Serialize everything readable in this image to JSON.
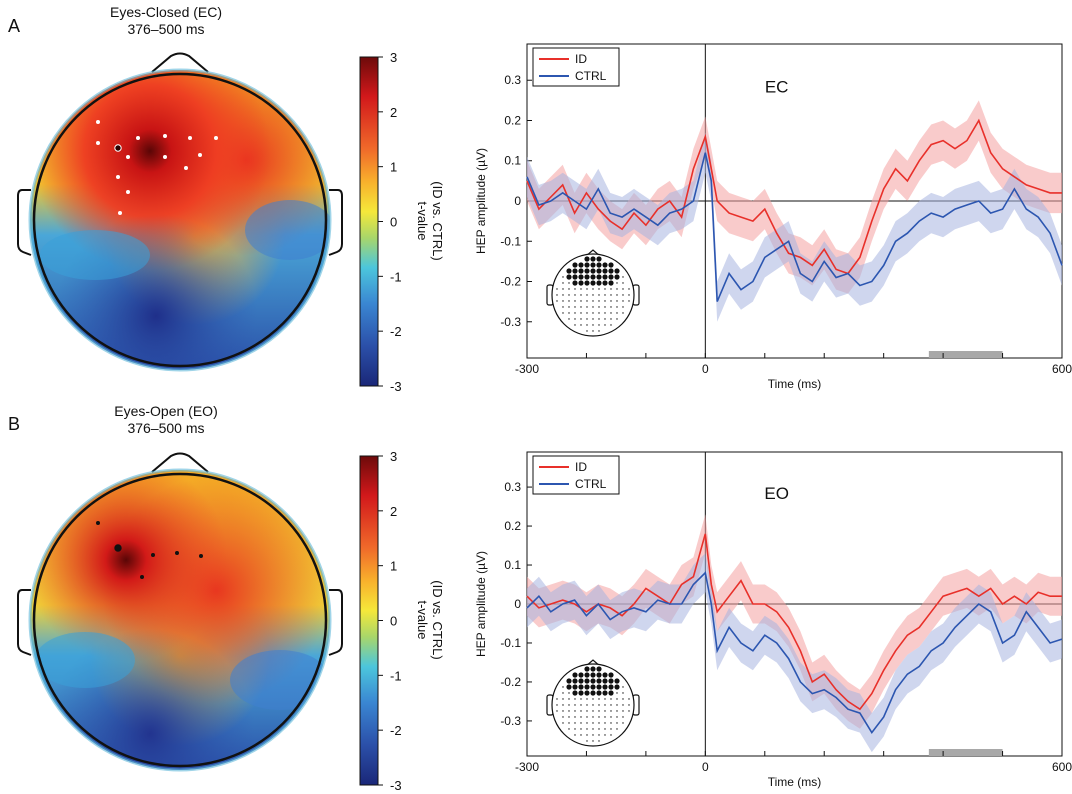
{
  "panels": [
    {
      "letter": "A",
      "topo": {
        "title": "Eyes-Closed (EC)",
        "window": "376–500 ms",
        "electrode_color": "#ffffff",
        "highlight_color": "#2a0000"
      },
      "colorbar": {
        "ticks": [
          "3",
          "2",
          "1",
          "0",
          "-1",
          "-2",
          "-3"
        ],
        "label_line1": "t-value",
        "label_line2": "(ID vs. CTRL)",
        "colors": [
          "#7b0c0c",
          "#d7191c",
          "#f46d43",
          "#fdae61",
          "#ffff40",
          "#a6d96a",
          "#5ac8d0",
          "#3d8bd6",
          "#2b4fa8",
          "#1c2a80"
        ]
      },
      "chart_data": {
        "type": "line",
        "condition_label": "EC",
        "xlabel": "Time (ms)",
        "ylabel": "HEP amplitude (µV)",
        "xlim": [
          -300,
          600
        ],
        "ylim": [
          -0.39,
          0.39
        ],
        "x_tick_labels": [
          "-300",
          "0",
          "600"
        ],
        "y_tick_labels": [
          "0.3",
          "0.2",
          "0.1",
          "0",
          "-0.1",
          "-0.2",
          "-0.3"
        ],
        "legend_position": "top-left",
        "significant_window_ms": [
          376,
          500
        ],
        "x": [
          -300,
          -280,
          -260,
          -240,
          -220,
          -200,
          -180,
          -160,
          -140,
          -120,
          -100,
          -80,
          -60,
          -40,
          -20,
          0,
          10,
          20,
          40,
          60,
          80,
          100,
          120,
          140,
          160,
          180,
          200,
          220,
          240,
          260,
          280,
          300,
          320,
          340,
          360,
          380,
          400,
          420,
          440,
          460,
          480,
          500,
          520,
          540,
          560,
          580,
          600
        ],
        "series": [
          {
            "name": "ID",
            "color": "#e8302a",
            "band_color": "#f4a0a0",
            "values": [
              0.05,
              -0.02,
              0.01,
              0.04,
              -0.03,
              0.02,
              -0.02,
              -0.05,
              -0.07,
              -0.03,
              -0.06,
              -0.02,
              0.0,
              -0.04,
              0.08,
              0.16,
              0.08,
              0.0,
              -0.03,
              -0.04,
              -0.05,
              -0.02,
              -0.08,
              -0.13,
              -0.14,
              -0.16,
              -0.12,
              -0.17,
              -0.18,
              -0.14,
              -0.05,
              0.03,
              0.08,
              0.05,
              0.1,
              0.14,
              0.15,
              0.13,
              0.15,
              0.2,
              0.12,
              0.08,
              0.06,
              0.04,
              0.03,
              0.02,
              0.02
            ]
          },
          {
            "name": "CTRL",
            "color": "#2c56b0",
            "band_color": "#a8b4e0",
            "values": [
              0.06,
              -0.01,
              0.0,
              0.02,
              0.0,
              -0.02,
              0.03,
              -0.03,
              -0.04,
              -0.02,
              -0.04,
              -0.06,
              -0.03,
              -0.02,
              0.0,
              0.12,
              0.05,
              -0.25,
              -0.18,
              -0.22,
              -0.2,
              -0.14,
              -0.12,
              -0.1,
              -0.18,
              -0.2,
              -0.15,
              -0.19,
              -0.18,
              -0.21,
              -0.2,
              -0.16,
              -0.1,
              -0.08,
              -0.05,
              -0.03,
              -0.04,
              -0.02,
              -0.01,
              0.0,
              -0.03,
              -0.02,
              0.03,
              -0.02,
              -0.04,
              -0.08,
              -0.16
            ]
          }
        ]
      }
    },
    {
      "letter": "B",
      "topo": {
        "title": "Eyes-Open (EO)",
        "window": "376–500 ms",
        "electrode_color": "#111111",
        "highlight_color": "#111111"
      },
      "colorbar": {
        "ticks": [
          "3",
          "2",
          "1",
          "0",
          "-1",
          "-2",
          "-3"
        ],
        "label_line1": "t-value",
        "label_line2": "(ID vs. CTRL)",
        "colors": [
          "#7b0c0c",
          "#d7191c",
          "#f46d43",
          "#fdae61",
          "#ffff40",
          "#a6d96a",
          "#5ac8d0",
          "#3d8bd6",
          "#2b4fa8",
          "#1c2a80"
        ]
      },
      "chart_data": {
        "type": "line",
        "condition_label": "EO",
        "xlabel": "Time (ms)",
        "ylabel": "HEP amplitude (µV)",
        "xlim": [
          -300,
          600
        ],
        "ylim": [
          -0.39,
          0.39
        ],
        "x_tick_labels": [
          "-300",
          "0",
          "600"
        ],
        "y_tick_labels": [
          "0.3",
          "0.2",
          "0.1",
          "0",
          "-0.1",
          "-0.2",
          "-0.3"
        ],
        "legend_position": "top-left",
        "significant_window_ms": [
          376,
          500
        ],
        "x": [
          -300,
          -280,
          -260,
          -240,
          -220,
          -200,
          -180,
          -160,
          -140,
          -120,
          -100,
          -80,
          -60,
          -40,
          -20,
          0,
          10,
          20,
          40,
          60,
          80,
          100,
          120,
          140,
          160,
          180,
          200,
          220,
          240,
          260,
          280,
          300,
          320,
          340,
          360,
          380,
          400,
          420,
          440,
          460,
          480,
          500,
          520,
          540,
          560,
          580,
          600
        ],
        "series": [
          {
            "name": "ID",
            "color": "#e8302a",
            "band_color": "#f4a0a0",
            "values": [
              0.02,
              -0.01,
              0.0,
              0.01,
              0.0,
              -0.02,
              0.0,
              -0.01,
              -0.03,
              0.0,
              0.04,
              0.02,
              0.0,
              0.05,
              0.07,
              0.18,
              0.05,
              -0.02,
              0.02,
              0.06,
              0.0,
              0.0,
              -0.02,
              -0.06,
              -0.12,
              -0.2,
              -0.18,
              -0.22,
              -0.25,
              -0.27,
              -0.23,
              -0.17,
              -0.12,
              -0.08,
              -0.06,
              -0.02,
              0.02,
              0.03,
              0.04,
              0.02,
              0.04,
              0.0,
              0.02,
              0.0,
              0.03,
              0.02,
              0.02
            ]
          },
          {
            "name": "CTRL",
            "color": "#2c56b0",
            "band_color": "#a8b4e0",
            "values": [
              -0.01,
              0.02,
              -0.02,
              0.0,
              0.01,
              -0.03,
              0.0,
              -0.04,
              -0.02,
              -0.01,
              -0.02,
              0.01,
              0.0,
              0.0,
              0.05,
              0.08,
              0.0,
              -0.12,
              -0.06,
              -0.1,
              -0.12,
              -0.08,
              -0.1,
              -0.14,
              -0.2,
              -0.23,
              -0.22,
              -0.24,
              -0.27,
              -0.28,
              -0.33,
              -0.29,
              -0.22,
              -0.18,
              -0.16,
              -0.12,
              -0.1,
              -0.06,
              -0.03,
              0.0,
              -0.02,
              -0.1,
              -0.08,
              -0.02,
              -0.06,
              -0.1,
              -0.09
            ]
          }
        ]
      }
    }
  ]
}
